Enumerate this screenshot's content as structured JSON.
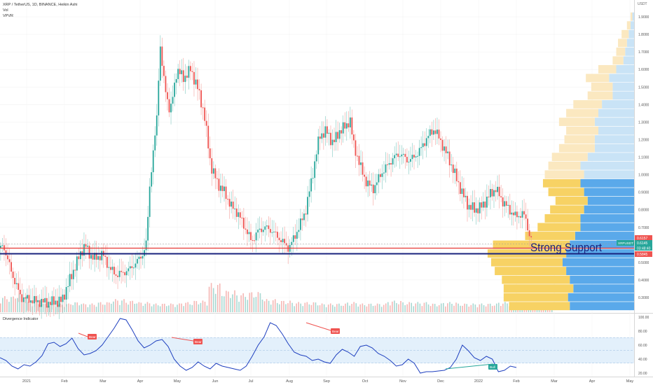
{
  "header": {
    "title": "XRP / TetherUS, 1D, BINANCE, Heikin Ashi",
    "indicators": [
      "Vol",
      "VPVR"
    ]
  },
  "price_axis": {
    "currency": "USDT",
    "ticks": [
      "1.9000",
      "1.8000",
      "1.7000",
      "1.6000",
      "1.5000",
      "1.4000",
      "1.3000",
      "1.2000",
      "1.1000",
      "1.0000",
      "0.9000",
      "0.8000",
      "0.7000",
      "0.6000",
      "0.5000",
      "0.4000",
      "0.3000"
    ],
    "labels": {
      "high_marker": "0.6157",
      "symbol": "XRPUSDT",
      "last_price": "0.6145",
      "countdown": "03:48:40",
      "support_level": "0.5845"
    }
  },
  "annotation": {
    "text": "Strong Support"
  },
  "divergence": {
    "title": "Divergence Indicator",
    "ticks": [
      "100.00",
      "80.00",
      "60.00",
      "40.00",
      "20.00"
    ],
    "labels": [
      "Bear",
      "Bear",
      "Bear",
      "Bull"
    ]
  },
  "time_axis": {
    "labels": [
      "2021",
      "Feb",
      "Mar",
      "Apr",
      "May",
      "Jun",
      "Jul",
      "Aug",
      "Sep",
      "Oct",
      "Nov",
      "Dec",
      "2022",
      "Feb",
      "Mar",
      "Apr",
      "May"
    ]
  },
  "colors": {
    "up": "#26a69a",
    "down": "#ef5350",
    "support_line": "#e53935",
    "support2_line": "#1a237e",
    "annotation": "#1a237e",
    "vpvr_up": "#5aa9ea",
    "vpvr_up_light": "#c9e3f6",
    "vpvr_down": "#f7d264",
    "vpvr_down_light": "#fbe8c0",
    "osc_line": "#1e3fbf",
    "osc_band": "#e3f0fb"
  },
  "chart_data": [
    {
      "type": "candlestick",
      "title": "XRP / TetherUS, 1D, BINANCE, Heikin Ashi",
      "x": [
        "2021-01",
        "2021-02",
        "2021-03",
        "2021-04",
        "2021-05",
        "2021-06",
        "2021-07",
        "2021-08",
        "2021-09",
        "2021-10",
        "2021-11",
        "2021-12",
        "2022-01"
      ],
      "ylim": [
        0.2,
        1.95
      ],
      "scale": "linear",
      "path": [
        [
          0.0,
          0.58
        ],
        [
          0.004,
          0.6
        ],
        [
          0.01,
          0.52
        ],
        [
          0.02,
          0.4
        ],
        [
          0.03,
          0.3
        ],
        [
          0.05,
          0.28
        ],
        [
          0.07,
          0.27
        ],
        [
          0.09,
          0.28
        ],
        [
          0.1,
          0.38
        ],
        [
          0.11,
          0.48
        ],
        [
          0.12,
          0.57
        ],
        [
          0.125,
          0.6
        ],
        [
          0.13,
          0.55
        ],
        [
          0.14,
          0.52
        ],
        [
          0.15,
          0.55
        ],
        [
          0.16,
          0.47
        ],
        [
          0.17,
          0.43
        ],
        [
          0.18,
          0.44
        ],
        [
          0.19,
          0.46
        ],
        [
          0.2,
          0.5
        ],
        [
          0.21,
          0.55
        ],
        [
          0.215,
          0.61
        ],
        [
          0.22,
          0.95
        ],
        [
          0.23,
          1.3
        ],
        [
          0.235,
          1.75
        ],
        [
          0.24,
          1.55
        ],
        [
          0.25,
          1.35
        ],
        [
          0.26,
          1.6
        ],
        [
          0.27,
          1.55
        ],
        [
          0.28,
          1.6
        ],
        [
          0.29,
          1.5
        ],
        [
          0.3,
          1.35
        ],
        [
          0.31,
          1.05
        ],
        [
          0.32,
          0.95
        ],
        [
          0.33,
          0.9
        ],
        [
          0.34,
          0.82
        ],
        [
          0.35,
          0.78
        ],
        [
          0.36,
          0.7
        ],
        [
          0.37,
          0.62
        ],
        [
          0.38,
          0.68
        ],
        [
          0.39,
          0.7
        ],
        [
          0.4,
          0.68
        ],
        [
          0.41,
          0.64
        ],
        [
          0.42,
          0.6
        ],
        [
          0.425,
          0.58
        ],
        [
          0.43,
          0.62
        ],
        [
          0.44,
          0.7
        ],
        [
          0.45,
          0.8
        ],
        [
          0.46,
          1.0
        ],
        [
          0.47,
          1.22
        ],
        [
          0.48,
          1.25
        ],
        [
          0.49,
          1.18
        ],
        [
          0.5,
          1.25
        ],
        [
          0.51,
          1.28
        ],
        [
          0.515,
          1.32
        ],
        [
          0.52,
          1.18
        ],
        [
          0.53,
          1.05
        ],
        [
          0.54,
          0.95
        ],
        [
          0.55,
          0.92
        ],
        [
          0.56,
          1.0
        ],
        [
          0.57,
          1.05
        ],
        [
          0.58,
          1.1
        ],
        [
          0.59,
          1.12
        ],
        [
          0.6,
          1.08
        ],
        [
          0.61,
          1.1
        ],
        [
          0.62,
          1.15
        ],
        [
          0.63,
          1.22
        ],
        [
          0.64,
          1.26
        ],
        [
          0.645,
          1.22
        ],
        [
          0.65,
          1.18
        ],
        [
          0.66,
          1.1
        ],
        [
          0.67,
          1.0
        ],
        [
          0.68,
          0.9
        ],
        [
          0.69,
          0.82
        ],
        [
          0.7,
          0.8
        ],
        [
          0.71,
          0.82
        ],
        [
          0.72,
          0.88
        ],
        [
          0.73,
          0.92
        ],
        [
          0.74,
          0.85
        ],
        [
          0.75,
          0.8
        ],
        [
          0.76,
          0.76
        ],
        [
          0.77,
          0.78
        ],
        [
          0.775,
          0.74
        ],
        [
          0.78,
          0.65
        ],
        [
          0.785,
          0.62
        ]
      ]
    },
    {
      "type": "bar",
      "title": "Vol",
      "series": [
        {
          "values": [
            0.55,
            0.65,
            0.35,
            0.3,
            0.3,
            0.35,
            0.3,
            0.35,
            0.45,
            0.4,
            0.35,
            0.3,
            0.3,
            0.35,
            0.4,
            1.0,
            0.75,
            0.65,
            0.7,
            0.45,
            0.4,
            0.35,
            0.35,
            0.3,
            0.3,
            0.35,
            0.3,
            0.3,
            0.4,
            0.35,
            0.35,
            0.3,
            0.35,
            0.3,
            0.3,
            0.3,
            0.35,
            0.3,
            0.3,
            0.35
          ]
        }
      ]
    },
    {
      "type": "bar",
      "title": "VPVR",
      "orientation": "horizontal",
      "categories": [
        "1.90",
        "1.85",
        "1.80",
        "1.75",
        "1.70",
        "1.65",
        "1.60",
        "1.55",
        "1.50",
        "1.45",
        "1.40",
        "1.35",
        "1.30",
        "1.25",
        "1.20",
        "1.15",
        "1.10",
        "1.05",
        "1.00",
        "0.95",
        "0.90",
        "0.85",
        "0.80",
        "0.75",
        "0.70",
        "0.65",
        "0.60",
        "0.55",
        "0.50",
        "0.45",
        "0.40",
        "0.35",
        "0.30",
        "0.25"
      ],
      "series": [
        {
          "values": [
            0.01,
            0.02,
            0.03,
            0.04,
            0.05,
            0.06,
            0.1,
            0.14,
            0.12,
            0.12,
            0.18,
            0.2,
            0.22,
            0.2,
            0.22,
            0.22,
            0.26,
            0.3,
            0.28,
            0.3,
            0.28,
            0.26,
            0.28,
            0.3,
            0.3,
            0.33,
            0.36,
            0.38,
            0.4,
            0.38,
            0.36,
            0.34,
            0.37,
            0.36
          ]
        },
        {
          "values": [
            0.01,
            0.02,
            0.04,
            0.05,
            0.05,
            0.06,
            0.1,
            0.13,
            0.12,
            0.14,
            0.16,
            0.18,
            0.2,
            0.18,
            0.17,
            0.2,
            0.2,
            0.18,
            0.22,
            0.21,
            0.2,
            0.18,
            0.19,
            0.2,
            0.24,
            0.28,
            0.43,
            0.44,
            0.4,
            0.4,
            0.38,
            0.39,
            0.36,
            0.34
          ]
        }
      ]
    },
    {
      "type": "line",
      "title": "Divergence Indicator",
      "ylim": [
        15,
        105
      ],
      "series": [
        {
          "values": [
            42,
            38,
            30,
            26,
            32,
            30,
            36,
            45,
            62,
            64,
            58,
            62,
            70,
            55,
            46,
            48,
            52,
            60,
            72,
            84,
            98,
            96,
            82,
            66,
            56,
            60,
            66,
            68,
            58,
            40,
            30,
            24,
            28,
            36,
            30,
            26,
            34,
            30,
            28,
            26,
            24,
            30,
            44,
            60,
            72,
            92,
            88,
            76,
            62,
            50,
            46,
            44,
            38,
            40,
            36,
            34,
            46,
            54,
            50,
            44,
            58,
            60,
            56,
            48,
            44,
            38,
            30,
            32,
            40,
            34,
            20,
            22,
            22,
            23,
            24,
            28,
            40,
            60,
            52,
            42,
            38,
            44,
            40,
            22,
            24,
            30,
            28
          ]
        }
      ]
    }
  ]
}
